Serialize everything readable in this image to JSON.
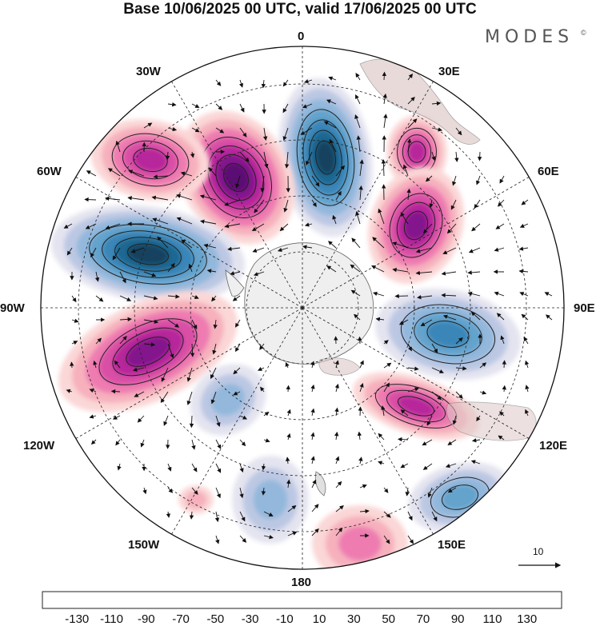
{
  "title": "Base 10/06/2025 00 UTC, valid 17/06/2025 00 UTC",
  "brand": "MODES",
  "brand_mark": "©",
  "projection": "south-polar-stereographic",
  "longitude_labels": {
    "top": "0",
    "top_right": "30E",
    "right_upper": "60E",
    "right": "90E",
    "right_lower": "120E",
    "bottom_right": "150E",
    "bottom": "180",
    "bottom_left": "150W",
    "left_lower": "120W",
    "left": "90W",
    "left_upper": "60W",
    "top_left": "30W"
  },
  "vector_reference": {
    "label": "10"
  },
  "colorbar": {
    "labels": [
      "-130",
      "-110",
      "-90",
      "-70",
      "-50",
      "-30",
      "-10",
      "10",
      "30",
      "50",
      "70",
      "90",
      "110",
      "130"
    ],
    "colors": [
      "#16435e",
      "#1f6792",
      "#3a86b8",
      "#63a3cc",
      "#93b8dc",
      "#bcc8e3",
      "#e4e4f0",
      "#ffffff",
      "#fbd7d7",
      "#f6b1bd",
      "#ee7cb1",
      "#d94fa6",
      "#b7279b",
      "#83168d",
      "#5a1172"
    ]
  },
  "anomalies": [
    {
      "name": "blue-north",
      "value": -130
    },
    {
      "name": "purple-northwest",
      "value": 130
    },
    {
      "name": "pink-northwest",
      "value": 90
    },
    {
      "name": "blue-west",
      "value": -130
    },
    {
      "name": "purple-southwest",
      "value": 110
    },
    {
      "name": "pink-upper-east",
      "value": 90
    },
    {
      "name": "pink-east",
      "value": 110
    },
    {
      "name": "blue-east",
      "value": -90
    },
    {
      "name": "pink-southeast",
      "value": 90
    },
    {
      "name": "blue-far-southeast",
      "value": -70
    },
    {
      "name": "light-blue-south",
      "value": -50
    },
    {
      "name": "light-blue-southwest",
      "value": -50
    },
    {
      "name": "pink-south-small",
      "value": 30
    },
    {
      "name": "pink-south",
      "value": 50
    }
  ]
}
